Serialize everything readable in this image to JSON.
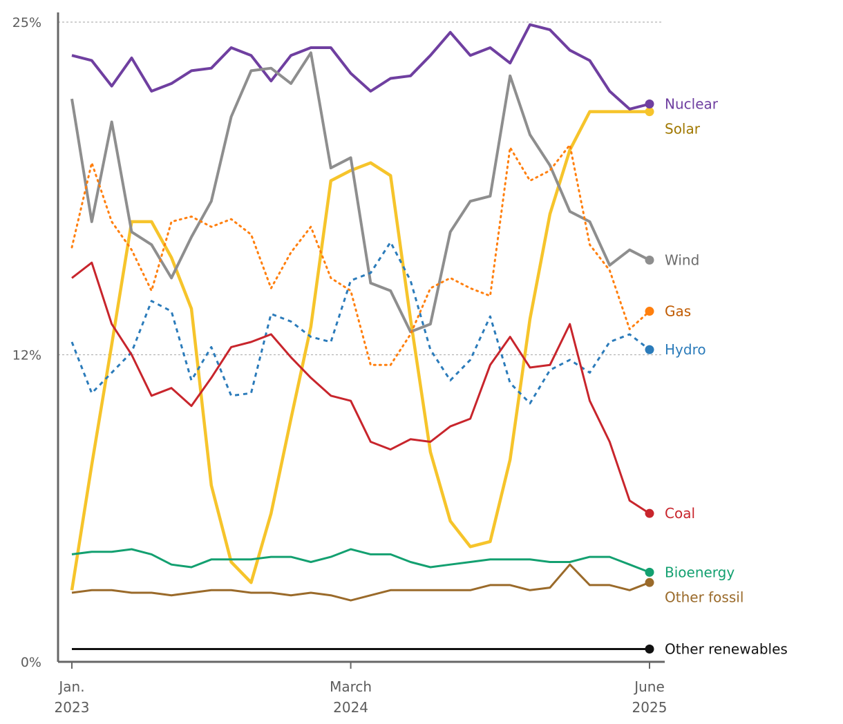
{
  "chart_data": {
    "type": "line",
    "title": "",
    "xlabel": "",
    "ylabel": "",
    "ylim": [
      0,
      25
    ],
    "yticks": [
      {
        "value": 0,
        "label": "0%"
      },
      {
        "value": 12,
        "label": "12%"
      },
      {
        "value": 25,
        "label": "25%"
      }
    ],
    "xticks": [
      {
        "date": "2023-01",
        "line1": "Jan.",
        "line2": "2023"
      },
      {
        "date": "2024-03",
        "line1": "March",
        "line2": "2024"
      },
      {
        "date": "2025-06",
        "line1": "June",
        "line2": "2025"
      }
    ],
    "x": [
      "2023-01",
      "2023-02",
      "2023-03",
      "2023-04",
      "2023-05",
      "2023-06",
      "2023-07",
      "2023-08",
      "2023-09",
      "2023-10",
      "2023-11",
      "2023-12",
      "2024-01",
      "2024-02",
      "2024-03",
      "2024-04",
      "2024-05",
      "2024-06",
      "2024-07",
      "2024-08",
      "2024-09",
      "2024-10",
      "2024-11",
      "2024-12",
      "2025-01",
      "2025-02",
      "2025-03",
      "2025-04",
      "2025-05",
      "2025-06"
    ],
    "grid": "dashed horizontal at 12% and 25%",
    "legend": "labels at right end of each line",
    "series": [
      {
        "name": "Solar",
        "color": "#f6c42b",
        "label_color": "#a07800",
        "style": "solid",
        "width": 4.5,
        "values": [
          2.8,
          7.7,
          12.4,
          17.2,
          17.2,
          15.8,
          13.8,
          6.9,
          3.9,
          3.1,
          5.8,
          9.5,
          13.1,
          18.8,
          19.2,
          19.5,
          19.0,
          13.4,
          8.2,
          5.5,
          4.5,
          4.7,
          7.9,
          13.4,
          17.5,
          20.0,
          21.5,
          21.5,
          21.5,
          21.5
        ]
      },
      {
        "name": "Nuclear",
        "color": "#6f3fa0",
        "label_color": "#6f3fa0",
        "style": "solid",
        "width": 4,
        "values": [
          23.7,
          23.5,
          22.5,
          23.6,
          22.3,
          22.6,
          23.1,
          23.2,
          24.0,
          23.7,
          22.7,
          23.7,
          24.0,
          24.0,
          23.0,
          22.3,
          22.8,
          22.9,
          23.7,
          24.6,
          23.7,
          24.0,
          23.4,
          24.9,
          24.7,
          23.9,
          23.5,
          22.3,
          21.6,
          21.8
        ]
      },
      {
        "name": "Wind",
        "color": "#8e8e8e",
        "label_color": "#6b6b6b",
        "style": "solid",
        "width": 4,
        "values": [
          22.0,
          17.2,
          21.1,
          16.8,
          16.3,
          15.0,
          16.6,
          18.0,
          21.3,
          23.1,
          23.2,
          22.6,
          23.8,
          19.3,
          19.7,
          14.8,
          14.5,
          12.9,
          13.2,
          16.8,
          18.0,
          18.2,
          22.9,
          20.6,
          19.4,
          17.6,
          17.2,
          15.5,
          16.1,
          15.7
        ]
      },
      {
        "name": "Gas",
        "color": "#ff7f0e",
        "label_color": "#c05a00",
        "style": "dotted",
        "width": 3,
        "values": [
          16.2,
          19.5,
          17.2,
          16.1,
          14.5,
          17.2,
          17.4,
          17.0,
          17.3,
          16.7,
          14.6,
          16.0,
          17.0,
          15.0,
          14.5,
          11.6,
          11.6,
          12.8,
          14.6,
          15.0,
          14.6,
          14.3,
          20.1,
          18.8,
          19.2,
          20.2,
          16.3,
          15.3,
          13.0,
          13.7
        ]
      },
      {
        "name": "Hydro",
        "color": "#2b7bba",
        "label_color": "#2b7bba",
        "style": "dashed",
        "width": 3,
        "values": [
          12.5,
          10.5,
          11.3,
          12.1,
          14.1,
          13.7,
          11.0,
          12.3,
          10.4,
          10.5,
          13.6,
          13.3,
          12.7,
          12.5,
          14.9,
          15.2,
          16.4,
          14.9,
          12.2,
          11.0,
          11.8,
          13.5,
          10.9,
          10.1,
          11.4,
          11.8,
          11.3,
          12.5,
          12.8,
          12.2
        ]
      },
      {
        "name": "Coal",
        "color": "#c8252c",
        "label_color": "#c8252c",
        "style": "solid",
        "width": 3,
        "values": [
          15.0,
          15.6,
          13.2,
          12.0,
          10.4,
          10.7,
          10.0,
          11.1,
          12.3,
          12.5,
          12.8,
          11.9,
          11.1,
          10.4,
          10.2,
          8.6,
          8.3,
          8.7,
          8.6,
          9.2,
          9.5,
          11.6,
          12.7,
          11.5,
          11.6,
          13.2,
          10.2,
          8.6,
          6.3,
          5.8
        ]
      },
      {
        "name": "Bioenergy",
        "color": "#13a070",
        "label_color": "#13a070",
        "style": "solid",
        "width": 3,
        "values": [
          4.2,
          4.3,
          4.3,
          4.4,
          4.2,
          3.8,
          3.7,
          4.0,
          4.0,
          4.0,
          4.1,
          4.1,
          3.9,
          4.1,
          4.4,
          4.2,
          4.2,
          3.9,
          3.7,
          3.8,
          3.9,
          4.0,
          4.0,
          4.0,
          3.9,
          3.9,
          4.1,
          4.1,
          3.8,
          3.5
        ]
      },
      {
        "name": "Other fossil",
        "color": "#9a6a2a",
        "label_color": "#9a6a2a",
        "style": "solid",
        "width": 3,
        "values": [
          2.7,
          2.8,
          2.8,
          2.7,
          2.7,
          2.6,
          2.7,
          2.8,
          2.8,
          2.7,
          2.7,
          2.6,
          2.7,
          2.6,
          2.4,
          2.6,
          2.8,
          2.8,
          2.8,
          2.8,
          2.8,
          3.0,
          3.0,
          2.8,
          2.9,
          3.8,
          3.0,
          3.0,
          2.8,
          3.1
        ]
      },
      {
        "name": "Other renewables",
        "color": "#111111",
        "label_color": "#111111",
        "style": "solid",
        "width": 3,
        "values": [
          0.5,
          0.5,
          0.5,
          0.5,
          0.5,
          0.5,
          0.5,
          0.5,
          0.5,
          0.5,
          0.5,
          0.5,
          0.5,
          0.5,
          0.5,
          0.5,
          0.5,
          0.5,
          0.5,
          0.5,
          0.5,
          0.5,
          0.5,
          0.5,
          0.5,
          0.5,
          0.5,
          0.5,
          0.5,
          0.5
        ]
      }
    ]
  }
}
